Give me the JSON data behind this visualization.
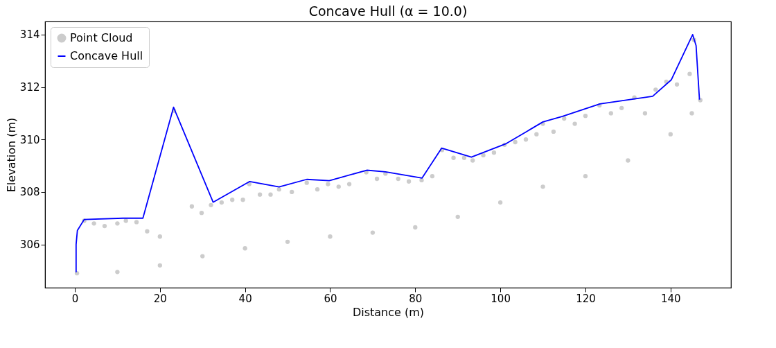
{
  "chart_data": {
    "type": "scatter",
    "title": "Concave Hull (α = 10.0)",
    "xlabel": "Distance (m)",
    "ylabel": "Elevation (m)",
    "xlim": [
      -7.0,
      154.2
    ],
    "ylim": [
      304.35,
      314.5
    ],
    "xticks": [
      0,
      20,
      40,
      60,
      80,
      100,
      120,
      140
    ],
    "yticks": [
      306,
      308,
      310,
      312,
      314
    ],
    "grid": false,
    "legend": "top left",
    "series": [
      {
        "name": "Point Cloud",
        "marker": "circle",
        "color": "#cccccc",
        "x": [
          0.5,
          10,
          20,
          30,
          40,
          50,
          60,
          70,
          80,
          90,
          100,
          110,
          120,
          130,
          140,
          145,
          147,
          2.2,
          4.5,
          7,
          10,
          12,
          14.5,
          17,
          20,
          23.3,
          27.5,
          29.8,
          32,
          34.5,
          37,
          39.5,
          41,
          43.5,
          46,
          48,
          51,
          54.5,
          57,
          59.5,
          62,
          64.5,
          68.5,
          71,
          73,
          76,
          78.5,
          81.5,
          84,
          86.3,
          89,
          91.5,
          93.5,
          96,
          98.5,
          101,
          103.5,
          106,
          108.5,
          110,
          112.5,
          115,
          117.5,
          120,
          123.3,
          126,
          128.5,
          131.5,
          134,
          136.5,
          139,
          141.5,
          144.5,
          145.5
        ],
        "values": [
          304.9,
          304.95,
          305.2,
          305.55,
          305.85,
          306.1,
          306.3,
          306.45,
          306.65,
          307.05,
          307.6,
          308.2,
          308.6,
          309.2,
          310.2,
          311.0,
          311.5,
          306.9,
          306.8,
          306.7,
          306.8,
          306.9,
          306.85,
          306.5,
          306.3,
          311.1,
          307.45,
          307.2,
          307.5,
          307.6,
          307.7,
          307.7,
          308.3,
          307.9,
          307.9,
          308.1,
          308.0,
          308.35,
          308.1,
          308.3,
          308.2,
          308.3,
          308.75,
          308.5,
          308.7,
          308.5,
          308.4,
          308.45,
          308.6,
          309.6,
          309.3,
          309.3,
          309.2,
          309.4,
          309.5,
          309.8,
          309.9,
          310.0,
          310.2,
          310.6,
          310.3,
          310.8,
          310.6,
          310.9,
          311.3,
          311.0,
          311.2,
          311.6,
          311.0,
          311.9,
          312.2,
          312.1,
          312.5,
          313.8
        ]
      },
      {
        "name": "Concave Hull",
        "type": "line",
        "marker": "none",
        "color": "#0000ff",
        "x": [
          0.3,
          0.3,
          0.6,
          2.2,
          11.3,
          16.0,
          23.2,
          32.5,
          41.1,
          48.0,
          54.5,
          59.8,
          68.6,
          73.0,
          81.6,
          86.2,
          93.2,
          101.2,
          105.3,
          110.0,
          114.6,
          123.4,
          135.8,
          140.2,
          145.2,
          146.0,
          146.8
        ],
        "values": [
          304.94,
          306.0,
          306.53,
          306.95,
          307.0,
          307.0,
          311.23,
          307.61,
          308.4,
          308.19,
          308.48,
          308.43,
          308.83,
          308.77,
          308.53,
          309.67,
          309.33,
          309.83,
          310.22,
          310.67,
          310.88,
          311.36,
          311.65,
          312.28,
          314.0,
          313.58,
          311.52
        ]
      }
    ]
  }
}
